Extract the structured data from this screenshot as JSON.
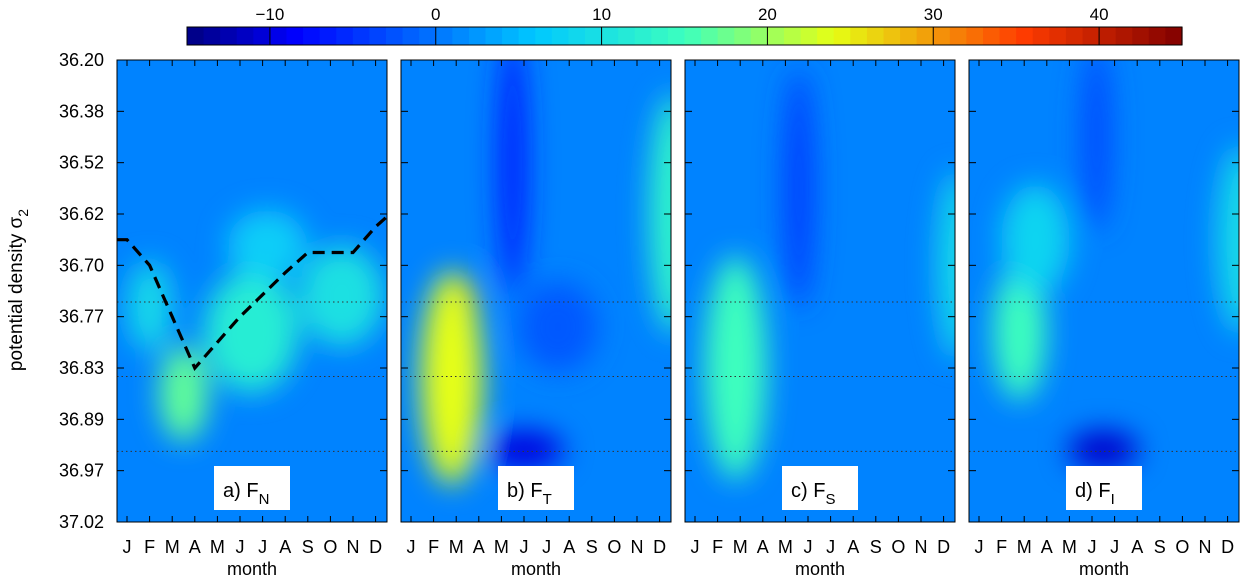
{
  "chart_data": {
    "type": "heatmap",
    "colorbar": {
      "min": -15,
      "max": 45,
      "ticks": [
        -10,
        0,
        10,
        20,
        30,
        40
      ],
      "tick_labels": [
        "−10",
        "0",
        "10",
        "20",
        "30",
        "40"
      ],
      "colormap": "jet"
    },
    "ylabel_main": "potential density σ",
    "ylabel_sub": "2",
    "y_ticks": [
      "36.20",
      "36.38",
      "36.52",
      "36.62",
      "36.70",
      "36.77",
      "36.83",
      "36.89",
      "36.97",
      "37.02"
    ],
    "reference_lines": [
      "36.75",
      "36.84",
      "36.94"
    ],
    "x_months": [
      "J",
      "F",
      "M",
      "A",
      "M",
      "J",
      "J",
      "A",
      "S",
      "O",
      "N",
      "D"
    ],
    "xlabel": "month",
    "panels": [
      {
        "label": "a) F",
        "sub": "N",
        "dashed_line": [
          [
            "J",
            "36.66"
          ],
          [
            "F",
            "36.70"
          ],
          [
            "M",
            "36.77"
          ],
          [
            "A",
            "36.83"
          ],
          [
            "M",
            "36.80"
          ],
          [
            "J",
            "36.77"
          ],
          [
            "J",
            "36.74"
          ],
          [
            "A",
            "36.71"
          ],
          [
            "S",
            "36.68"
          ],
          [
            "O",
            "36.68"
          ],
          [
            "N",
            "36.68"
          ],
          [
            "D",
            "36.64"
          ]
        ],
        "features": [
          {
            "month": 2.5,
            "level": 6.5,
            "value": 17,
            "width": 1.6,
            "height": 1.7
          },
          {
            "month": 5.5,
            "level": 5.3,
            "value": 12,
            "width": 3.6,
            "height": 2.2
          },
          {
            "month": 9.5,
            "level": 4.6,
            "value": 10,
            "width": 3.2,
            "height": 1.8
          },
          {
            "month": 1.0,
            "level": 4.8,
            "value": 9,
            "width": 1.4,
            "height": 1.6
          },
          {
            "month": 6.2,
            "level": 3.6,
            "value": 7,
            "width": 3.0,
            "height": 1.2
          }
        ]
      },
      {
        "label": "b) F",
        "sub": "T",
        "features": [
          {
            "month": 2.2,
            "level": 5.9,
            "value": 38,
            "width": 1.2,
            "height": 1.6
          },
          {
            "month": 2.0,
            "level": 4.9,
            "value": 34,
            "width": 1.3,
            "height": 1.3
          },
          {
            "month": 1.5,
            "level": 7.4,
            "value": 33,
            "width": 0.7,
            "height": 0.6
          },
          {
            "month": 1.8,
            "level": 6.2,
            "value": 24,
            "width": 2.2,
            "height": 4.0
          },
          {
            "month": 11.6,
            "level": 3.0,
            "value": 13,
            "width": 1.6,
            "height": 4.5
          },
          {
            "month": 4.5,
            "level": 2.0,
            "value": -6,
            "width": 0.8,
            "height": 5.0
          },
          {
            "month": 5.0,
            "level": 7.6,
            "value": -10,
            "width": 3.0,
            "height": 0.6
          },
          {
            "month": 6.5,
            "level": 5.2,
            "value": -2,
            "width": 3.0,
            "height": 1.6
          }
        ]
      },
      {
        "label": "c) F",
        "sub": "S",
        "features": [
          {
            "month": 2.2,
            "level": 6.0,
            "value": 22,
            "width": 1.3,
            "height": 2.2
          },
          {
            "month": 1.5,
            "level": 7.4,
            "value": 23,
            "width": 0.7,
            "height": 0.6
          },
          {
            "month": 1.8,
            "level": 6.0,
            "value": 15,
            "width": 2.2,
            "height": 4.2
          },
          {
            "month": 11.6,
            "level": 4.0,
            "value": 9,
            "width": 1.2,
            "height": 3.5
          },
          {
            "month": 4.6,
            "level": 2.5,
            "value": -4,
            "width": 0.8,
            "height": 4.5
          }
        ]
      },
      {
        "label": "d) F",
        "sub": "I",
        "features": [
          {
            "month": 1.8,
            "level": 5.3,
            "value": 15,
            "width": 1.8,
            "height": 2.5
          },
          {
            "month": 2.5,
            "level": 3.5,
            "value": 8,
            "width": 2.5,
            "height": 2.0
          },
          {
            "month": 11.6,
            "level": 3.5,
            "value": 9,
            "width": 1.6,
            "height": 3.5
          },
          {
            "month": 5.5,
            "level": 7.6,
            "value": -11,
            "width": 2.6,
            "height": 0.6
          },
          {
            "month": 5.2,
            "level": 1.5,
            "value": -3,
            "width": 0.8,
            "height": 3.5
          }
        ]
      }
    ],
    "background_value": 1
  }
}
